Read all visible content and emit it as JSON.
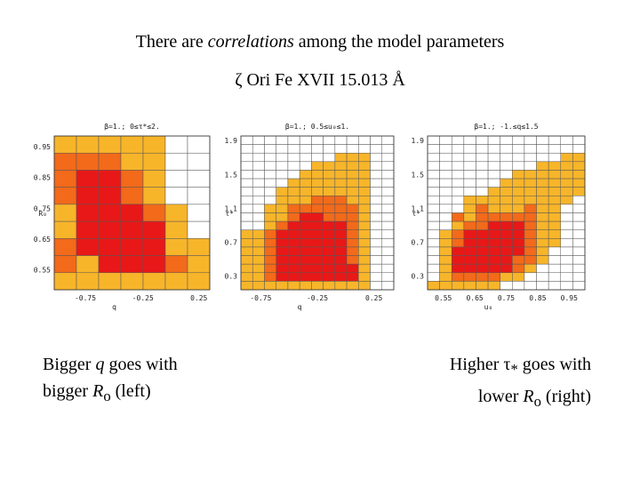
{
  "slide": {
    "title_prefix": "There are ",
    "title_emph": "correlations",
    "title_suffix": " among the model parameters",
    "subtitle": "ζ Ori Fe XVII 15.013 Å"
  },
  "captions": {
    "left_line1_prefix": "Bigger ",
    "left_line1_emph": "q",
    "left_line1_suffix": " goes with",
    "left_line2_prefix": "bigger ",
    "left_line2_emph": "R",
    "left_line2_sub": "o",
    "left_line2_suffix": " (left)",
    "right_line1_prefix": "Higher τ",
    "right_line1_sub": "*",
    "right_line1_suffix": " goes with",
    "right_line2_prefix": "lower ",
    "right_line2_emph": "R",
    "right_line2_sub": "o",
    "right_line2_suffix": " (right)"
  },
  "colors": {
    "dark": "#e81818",
    "mid": "#f26a1a",
    "light": "#f7b52a",
    "empty": "#ffffff",
    "grid": "#555555"
  },
  "chart_data": [
    {
      "type": "heatmap",
      "header": "β=1.; 0≤τ*≤2.",
      "xlabel": "q",
      "ylabel": "R₀",
      "xticks": [
        "-0.75",
        "-0.25",
        "0.25"
      ],
      "yticks": [
        "0.95",
        "0.85",
        "0.75",
        "0.65",
        "0.55"
      ],
      "grid": [
        [
          3,
          3,
          3,
          3,
          3,
          0,
          0
        ],
        [
          2,
          2,
          2,
          3,
          3,
          0,
          0
        ],
        [
          2,
          1,
          1,
          2,
          3,
          0,
          0
        ],
        [
          2,
          1,
          1,
          2,
          3,
          0,
          0
        ],
        [
          3,
          1,
          1,
          1,
          2,
          3,
          0
        ],
        [
          3,
          1,
          1,
          1,
          1,
          3,
          0
        ],
        [
          2,
          1,
          1,
          1,
          1,
          3,
          3
        ],
        [
          2,
          3,
          1,
          1,
          1,
          2,
          3
        ],
        [
          3,
          3,
          3,
          3,
          3,
          3,
          3
        ]
      ]
    },
    {
      "type": "heatmap",
      "header": "β=1.; 0.5≤u₀≤1.",
      "xlabel": "q",
      "ylabel": "τ*",
      "xticks": [
        "-0.75",
        "-0.25",
        "0.25"
      ],
      "yticks": [
        "1.9",
        "1.5",
        "1.1",
        "0.7",
        "0.3"
      ],
      "grid": [
        [
          0,
          0,
          0,
          0,
          0,
          0,
          0,
          0,
          0,
          0,
          0,
          0,
          0
        ],
        [
          0,
          0,
          0,
          0,
          0,
          0,
          0,
          0,
          0,
          0,
          0,
          0,
          0
        ],
        [
          0,
          0,
          0,
          0,
          0,
          0,
          0,
          0,
          3,
          3,
          3,
          0,
          0
        ],
        [
          0,
          0,
          0,
          0,
          0,
          0,
          3,
          3,
          3,
          3,
          3,
          0,
          0
        ],
        [
          0,
          0,
          0,
          0,
          0,
          3,
          3,
          3,
          3,
          3,
          3,
          0,
          0
        ],
        [
          0,
          0,
          0,
          0,
          3,
          3,
          3,
          3,
          3,
          3,
          3,
          0,
          0
        ],
        [
          0,
          0,
          0,
          3,
          3,
          3,
          3,
          3,
          3,
          3,
          3,
          0,
          0
        ],
        [
          0,
          0,
          0,
          3,
          3,
          3,
          2,
          2,
          2,
          3,
          3,
          0,
          0
        ],
        [
          0,
          0,
          3,
          3,
          2,
          2,
          2,
          2,
          2,
          2,
          3,
          0,
          0
        ],
        [
          0,
          0,
          3,
          3,
          2,
          1,
          1,
          2,
          2,
          2,
          3,
          0,
          0
        ],
        [
          0,
          0,
          3,
          2,
          1,
          1,
          1,
          1,
          1,
          2,
          3,
          0,
          0
        ],
        [
          3,
          3,
          2,
          1,
          1,
          1,
          1,
          1,
          1,
          2,
          3,
          0,
          0
        ],
        [
          3,
          3,
          2,
          1,
          1,
          1,
          1,
          1,
          1,
          2,
          3,
          0,
          0
        ],
        [
          3,
          3,
          2,
          1,
          1,
          1,
          1,
          1,
          1,
          2,
          3,
          0,
          0
        ],
        [
          3,
          3,
          2,
          1,
          1,
          1,
          1,
          1,
          1,
          2,
          3,
          0,
          0
        ],
        [
          3,
          3,
          2,
          1,
          1,
          1,
          1,
          1,
          1,
          1,
          3,
          0,
          0
        ],
        [
          3,
          3,
          2,
          1,
          1,
          1,
          1,
          1,
          1,
          1,
          3,
          0,
          0
        ],
        [
          3,
          3,
          3,
          3,
          3,
          3,
          3,
          3,
          3,
          3,
          3,
          0,
          0
        ]
      ]
    },
    {
      "type": "heatmap",
      "header": "β=1.; -1.≤q≤1.5",
      "xlabel": "u₀",
      "ylabel": "τ*",
      "xticks": [
        "0.55",
        "0.65",
        "0.75",
        "0.85",
        "0.95"
      ],
      "yticks": [
        "1.9",
        "1.5",
        "1.1",
        "0.7",
        "0.3"
      ],
      "grid": [
        [
          0,
          0,
          0,
          0,
          0,
          0,
          0,
          0,
          0,
          0,
          0,
          0,
          0
        ],
        [
          0,
          0,
          0,
          0,
          0,
          0,
          0,
          0,
          0,
          0,
          0,
          0,
          0
        ],
        [
          0,
          0,
          0,
          0,
          0,
          0,
          0,
          0,
          0,
          0,
          0,
          3,
          3
        ],
        [
          0,
          0,
          0,
          0,
          0,
          0,
          0,
          0,
          0,
          3,
          3,
          3,
          3
        ],
        [
          0,
          0,
          0,
          0,
          0,
          0,
          0,
          3,
          3,
          3,
          3,
          3,
          3
        ],
        [
          0,
          0,
          0,
          0,
          0,
          0,
          3,
          3,
          3,
          3,
          3,
          3,
          3
        ],
        [
          0,
          0,
          0,
          0,
          0,
          3,
          3,
          3,
          3,
          3,
          3,
          3,
          3
        ],
        [
          0,
          0,
          0,
          3,
          3,
          3,
          3,
          3,
          3,
          3,
          3,
          3,
          0
        ],
        [
          0,
          0,
          0,
          3,
          2,
          3,
          3,
          3,
          2,
          3,
          3,
          0,
          0
        ],
        [
          0,
          0,
          2,
          3,
          2,
          2,
          2,
          2,
          2,
          3,
          3,
          0,
          0
        ],
        [
          0,
          0,
          3,
          2,
          2,
          1,
          1,
          1,
          2,
          3,
          3,
          0,
          0
        ],
        [
          0,
          3,
          2,
          1,
          1,
          1,
          1,
          1,
          2,
          3,
          3,
          0,
          0
        ],
        [
          0,
          3,
          2,
          1,
          1,
          1,
          1,
          1,
          2,
          3,
          3,
          0,
          0
        ],
        [
          0,
          3,
          1,
          1,
          1,
          1,
          1,
          1,
          2,
          3,
          0,
          0,
          0
        ],
        [
          0,
          3,
          1,
          1,
          1,
          1,
          1,
          2,
          2,
          3,
          0,
          0,
          0
        ],
        [
          0,
          3,
          1,
          1,
          1,
          1,
          1,
          2,
          3,
          0,
          0,
          0,
          0
        ],
        [
          0,
          3,
          2,
          2,
          2,
          2,
          3,
          3,
          0,
          0,
          0,
          0,
          0
        ],
        [
          3,
          3,
          3,
          3,
          3,
          3,
          0,
          0,
          0,
          0,
          0,
          0,
          0
        ]
      ]
    }
  ]
}
